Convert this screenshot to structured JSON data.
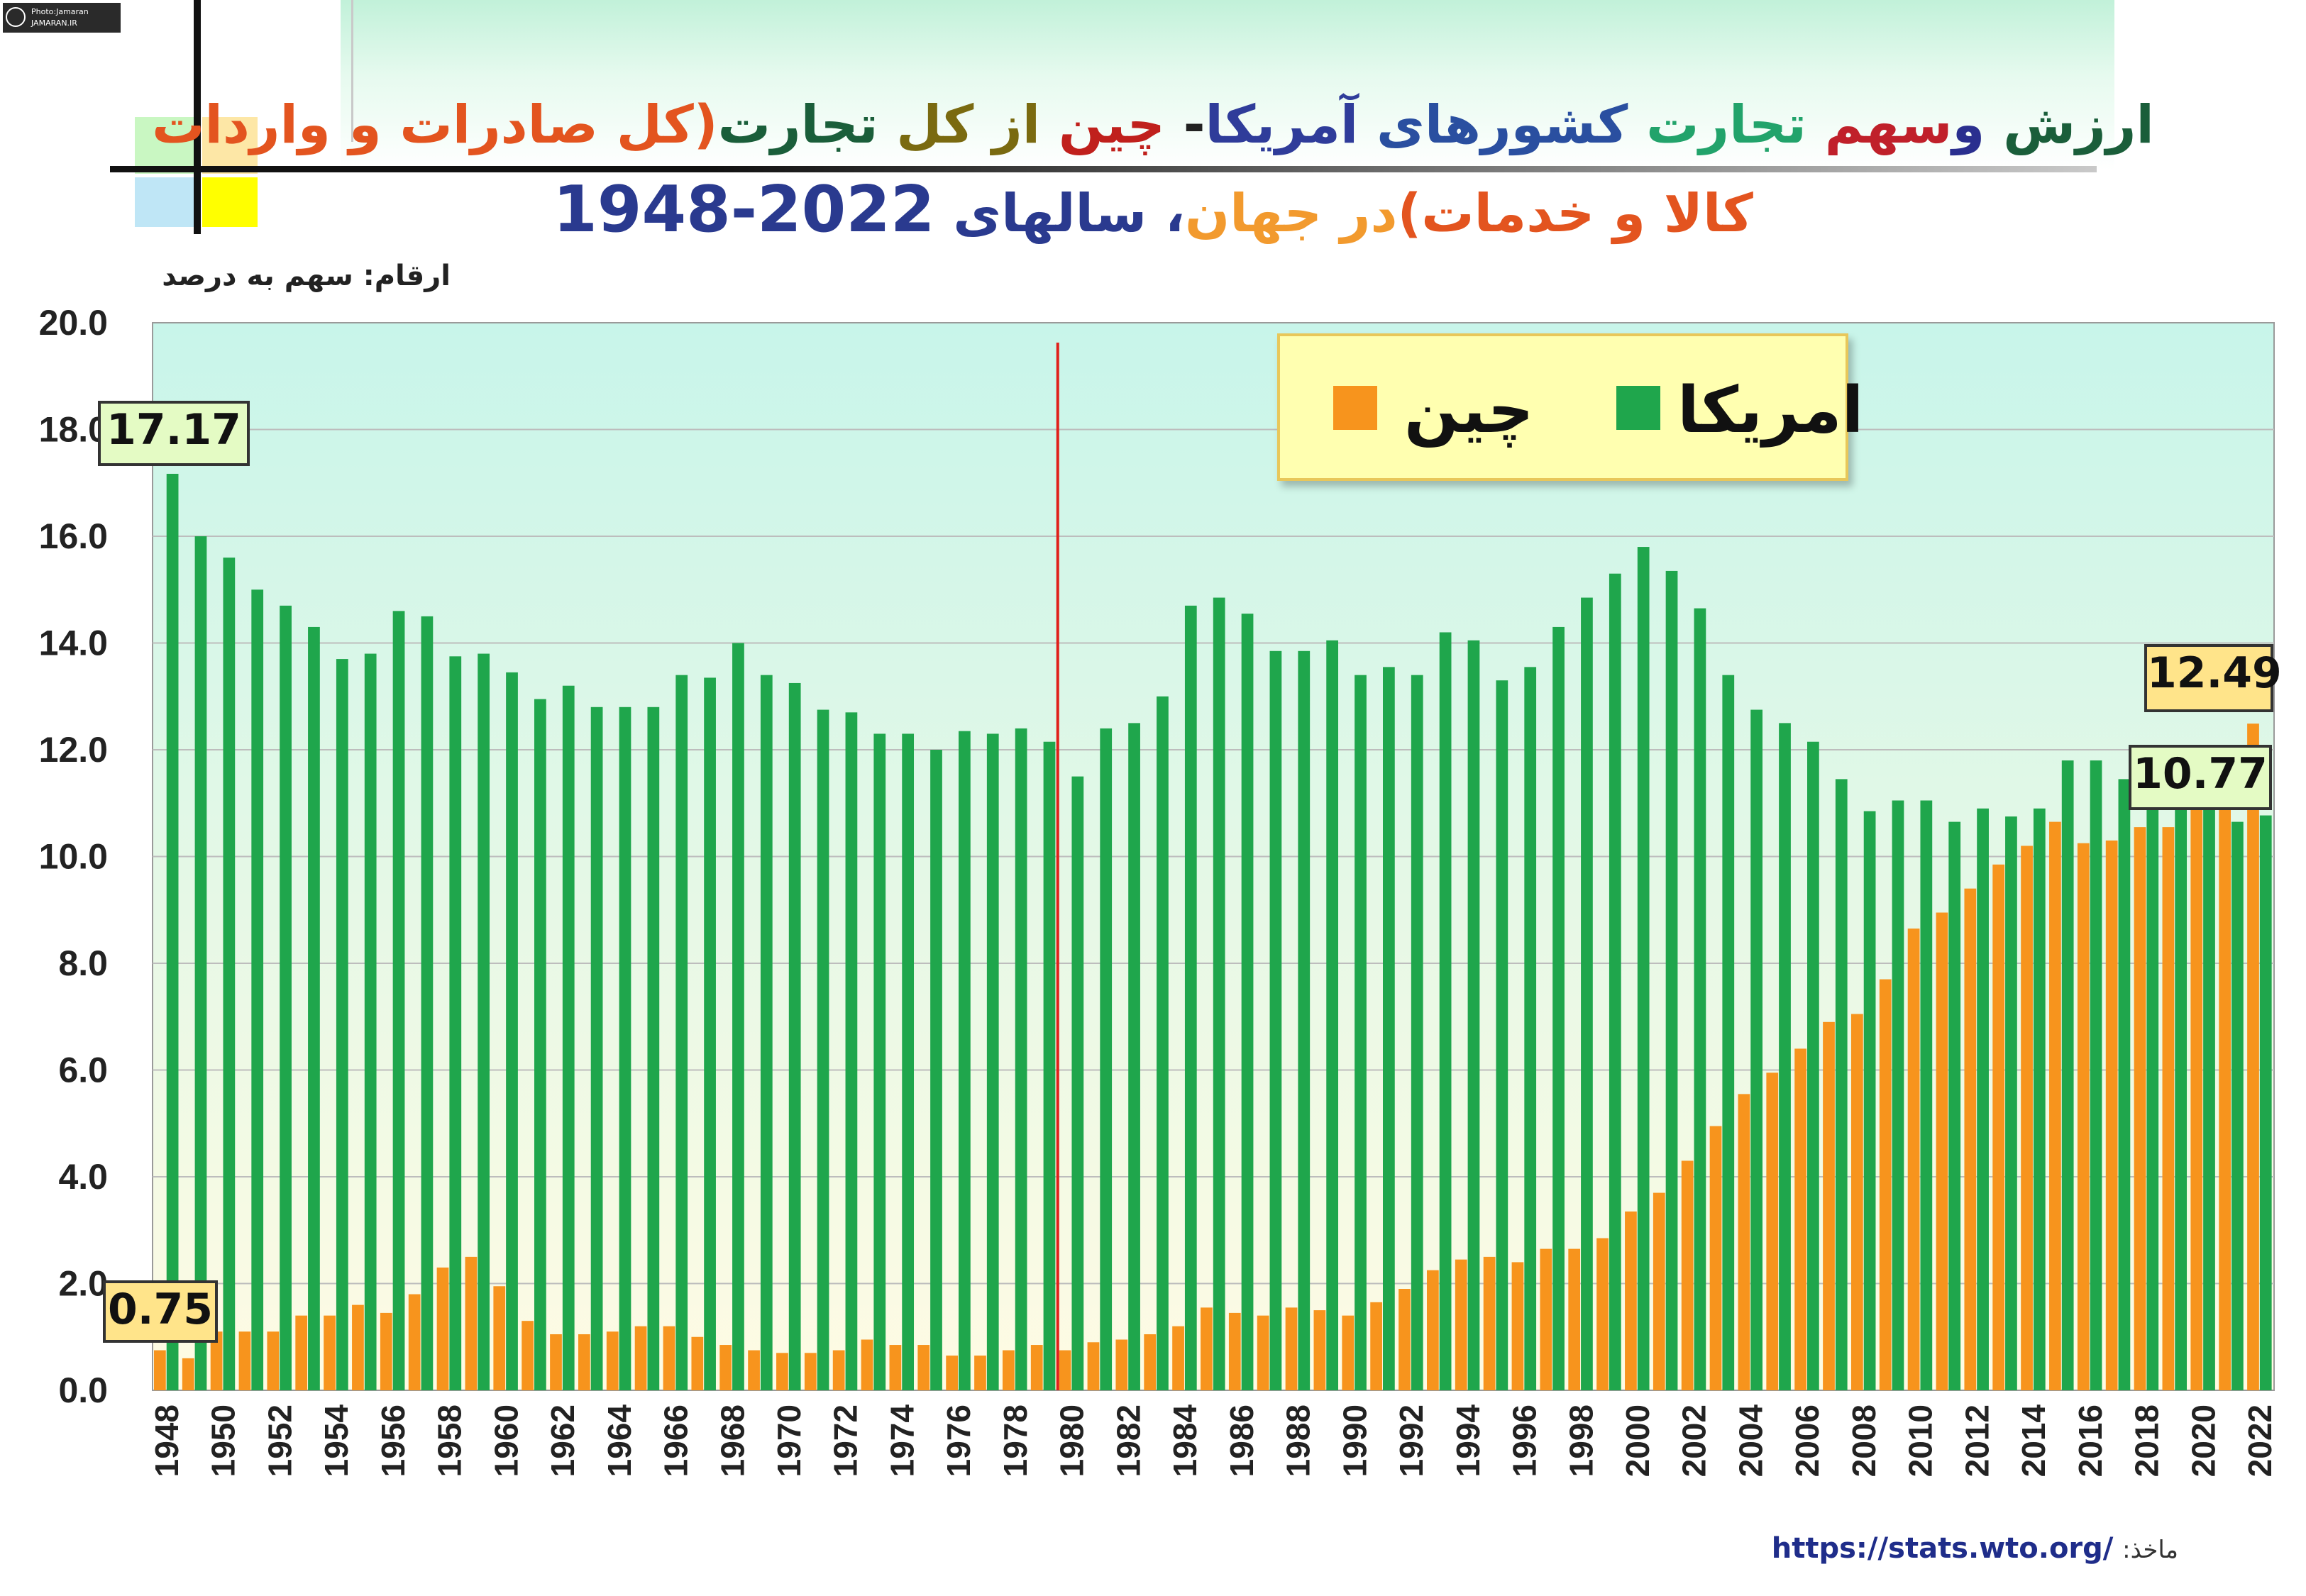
{
  "watermark": {
    "line1": "Photo:Jamaran",
    "line2": "JAMARAN.IR"
  },
  "title": {
    "line1_parts": [
      {
        "text": "ارزش ",
        "color": "#1a5e3a"
      },
      {
        "text": "و",
        "color": "#2a2f8f"
      },
      {
        "text": "سهم ",
        "color": "#c0202a"
      },
      {
        "text": "تجارت ",
        "color": "#22a36b"
      },
      {
        "text": "کشورهای ",
        "color": "#2a4fa0"
      },
      {
        "text": "آمریکا",
        "color": "#2f3c9a"
      },
      {
        "text": "- ",
        "color": "#222222"
      },
      {
        "text": "چین ",
        "color": "#c0201c"
      },
      {
        "text": "از ",
        "color": "#7a6a10"
      },
      {
        "text": "کل ",
        "color": "#7a6a10"
      },
      {
        "text": "تجارت",
        "color": "#1a5e3a"
      },
      {
        "text": "(کل صادرات و واردات",
        "color": "#e3541f"
      }
    ],
    "line2_parts": [
      {
        "text": "کالا و خدمات)",
        "color": "#e3541f"
      },
      {
        "text": "در جهان",
        "color": "#f29a2e"
      },
      {
        "text": "، سالهای ",
        "color": "#2a3a8f"
      },
      {
        "text": "1948-2022",
        "color": "#2a3a8f",
        "big": true
      }
    ]
  },
  "units_label": "ارقام: سهم به درصد",
  "source": {
    "label": "ماخذ:",
    "url": "https://stats.wto.org/"
  },
  "callouts": {
    "usa_first": "17.17",
    "china_first": "0.75",
    "china_last": "12.49",
    "usa_last": "10.77"
  },
  "colors": {
    "usa": "#1fa64c",
    "china": "#f7941d",
    "marker_line": "#e0201a",
    "plot_bg_top": "#c8f5ea",
    "plot_bg_bottom": "#fffbe3",
    "callout_green": "#e4fbc4",
    "callout_yellow": "#ffe48a"
  },
  "chart_data": {
    "type": "bar",
    "ylim": [
      0,
      20
    ],
    "yticks": [
      "0.0",
      "2.0",
      "4.0",
      "6.0",
      "8.0",
      "10.0",
      "12.0",
      "14.0",
      "16.0",
      "18.0",
      "20.0"
    ],
    "marker_year": 1980,
    "categories": [
      1948,
      1949,
      1950,
      1951,
      1952,
      1953,
      1954,
      1955,
      1956,
      1957,
      1958,
      1959,
      1960,
      1961,
      1962,
      1963,
      1964,
      1965,
      1966,
      1967,
      1968,
      1969,
      1970,
      1971,
      1972,
      1973,
      1974,
      1975,
      1976,
      1977,
      1978,
      1979,
      1980,
      1981,
      1982,
      1983,
      1984,
      1985,
      1986,
      1987,
      1988,
      1989,
      1990,
      1991,
      1992,
      1993,
      1994,
      1995,
      1996,
      1997,
      1998,
      1999,
      2000,
      2001,
      2002,
      2003,
      2004,
      2005,
      2006,
      2007,
      2008,
      2009,
      2010,
      2011,
      2012,
      2013,
      2014,
      2015,
      2016,
      2017,
      2018,
      2019,
      2020,
      2021,
      2022
    ],
    "xtick_labels": [
      "1948",
      "1950",
      "1952",
      "1954",
      "1956",
      "1958",
      "1960",
      "1962",
      "1964",
      "1966",
      "1968",
      "1970",
      "1972",
      "1974",
      "1976",
      "1978",
      "1980",
      "1982",
      "1984",
      "1986",
      "1988",
      "1990",
      "1992",
      "1994",
      "1996",
      "1998",
      "2000",
      "2002",
      "2004",
      "2006",
      "2008",
      "2010",
      "2012",
      "2014",
      "2016",
      "2018",
      "2020",
      "2022"
    ],
    "series": [
      {
        "name": "چین",
        "key": "china",
        "values": [
          0.75,
          0.6,
          1.1,
          1.1,
          1.1,
          1.4,
          1.4,
          1.6,
          1.45,
          1.8,
          2.3,
          2.5,
          1.95,
          1.3,
          1.05,
          1.05,
          1.1,
          1.2,
          1.2,
          1.0,
          0.85,
          0.75,
          0.7,
          0.7,
          0.75,
          0.95,
          0.85,
          0.85,
          0.65,
          0.65,
          0.75,
          0.85,
          0.75,
          0.9,
          0.95,
          1.05,
          1.2,
          1.55,
          1.45,
          1.4,
          1.55,
          1.5,
          1.4,
          1.65,
          1.9,
          2.25,
          2.45,
          2.5,
          2.4,
          2.65,
          2.65,
          2.85,
          3.35,
          3.7,
          4.3,
          4.95,
          5.55,
          5.95,
          6.4,
          6.9,
          7.05,
          7.7,
          8.65,
          8.95,
          9.4,
          9.85,
          10.2,
          10.65,
          10.25,
          10.3,
          10.55,
          10.55,
          11.0,
          11.2,
          12.49
        ]
      },
      {
        "name": "امریکا",
        "key": "usa",
        "values": [
          17.17,
          16.0,
          15.6,
          15.0,
          14.7,
          14.3,
          13.7,
          13.8,
          14.6,
          14.5,
          13.75,
          13.8,
          13.45,
          12.95,
          13.2,
          12.8,
          12.8,
          12.8,
          13.4,
          13.35,
          14.0,
          13.4,
          13.25,
          12.75,
          12.7,
          12.3,
          12.3,
          12.0,
          12.35,
          12.3,
          12.4,
          12.15,
          11.5,
          12.4,
          12.5,
          13.0,
          14.7,
          14.85,
          14.55,
          13.85,
          13.85,
          14.05,
          13.4,
          13.55,
          13.4,
          14.2,
          14.05,
          13.3,
          13.55,
          14.3,
          14.85,
          15.3,
          15.8,
          15.35,
          14.65,
          13.4,
          12.75,
          12.5,
          12.15,
          11.45,
          10.85,
          11.05,
          11.05,
          10.65,
          10.9,
          10.75,
          10.9,
          11.8,
          11.8,
          11.45,
          11.15,
          11.2,
          11.3,
          10.65,
          10.77
        ]
      }
    ]
  }
}
